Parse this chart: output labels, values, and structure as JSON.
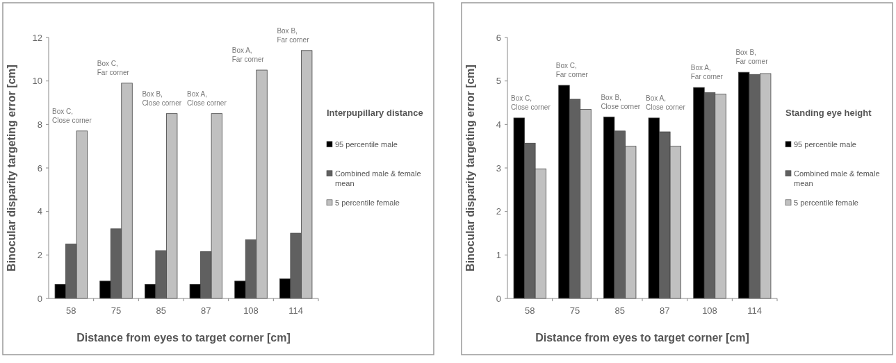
{
  "chart_data": [
    {
      "type": "bar",
      "xlabel": "Distance from eyes to target corner [cm]",
      "ylabel": "Binocular disparity targeting error [cm]",
      "legend_title": "Interpupillary distance",
      "legend": "right",
      "grid": false,
      "categories": [
        "58",
        "75",
        "85",
        "87",
        "108",
        "114"
      ],
      "ylim": [
        0,
        12
      ],
      "yticks": [
        0,
        2,
        4,
        6,
        8,
        10,
        12
      ],
      "series": [
        {
          "name": "95 percentile male",
          "color": "#000000",
          "values": [
            0.65,
            0.8,
            0.65,
            0.65,
            0.8,
            0.9
          ]
        },
        {
          "name": "Combined male & female mean",
          "color": "#606060",
          "values": [
            2.5,
            3.2,
            2.2,
            2.15,
            2.7,
            3.0
          ]
        },
        {
          "name": "5 percentile female",
          "color": "#c0c0c0",
          "values": [
            7.7,
            9.9,
            8.5,
            8.5,
            10.5,
            11.4
          ]
        }
      ],
      "annotations": [
        "Box C,\nClose corner",
        "Box C,\nFar corner",
        "Box B,\nClose corner",
        "Box A,\nClose corner",
        "Box A,\nFar corner",
        "Box B,\nFar corner"
      ]
    },
    {
      "type": "bar",
      "xlabel": "Distance from eyes to target corner [cm]",
      "ylabel": "Binocular disparity targeting error [cm]",
      "legend_title": "Standing eye height",
      "legend": "right",
      "grid": false,
      "categories": [
        "58",
        "75",
        "85",
        "87",
        "108",
        "114"
      ],
      "ylim": [
        0,
        6
      ],
      "yticks": [
        0,
        1,
        2,
        3,
        4,
        5,
        6
      ],
      "series": [
        {
          "name": "95 percentile male",
          "color": "#000000",
          "values": [
            4.15,
            4.9,
            4.17,
            4.15,
            4.85,
            5.2
          ]
        },
        {
          "name": "Combined male & female mean",
          "color": "#606060",
          "values": [
            3.57,
            4.58,
            3.85,
            3.83,
            4.73,
            5.15
          ]
        },
        {
          "name": "5 percentile female",
          "color": "#c0c0c0",
          "values": [
            2.98,
            4.35,
            3.5,
            3.5,
            4.7,
            5.17
          ]
        }
      ],
      "annotations": [
        "Box C,\nClose corner",
        "Box C,\nFar corner",
        "Box B,\nClose corner",
        "Box A,\nClose corner",
        "Box A,\nFar corner",
        "Box B,\nFar corner"
      ]
    }
  ]
}
